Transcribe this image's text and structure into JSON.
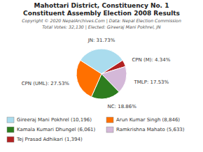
{
  "chart_data": {
    "type": "pie",
    "title": "Mahottari District, Constituency No. 1",
    "subtitle": "Constituent Assembly Election 2008 Results",
    "categories": [
      "JN",
      "CPN (M)",
      "TMLP",
      "NC",
      "CPN (UML)"
    ],
    "values": [
      31.73,
      4.34,
      17.53,
      18.86,
      27.53
    ],
    "value_labels": [
      "JN: 31.73%",
      "CPN (M): 4.34%",
      "TMLP: 17.53%",
      "NC: 18.86%",
      "CPN (UML): 27.53%"
    ],
    "colors": [
      "#aadcee",
      "#b22222",
      "#d4b8d8",
      "#2e7d1f",
      "#ff7000"
    ],
    "data_labels": true,
    "annotations": [
      {
        "text": "Copyright © 2020 NepalArchives.Com | Data: Nepal Election Commission"
      },
      {
        "text": "Total Votes: 32,130 | Elected: Gireeraj Mani Pokhrel, JN"
      },
      {
        "text": "Gireeraj Mani Pokhrel (10,196)",
        "color": "#aadcee"
      },
      {
        "text": "Arun Kumar Singh (8,846)",
        "color": "#ff7000"
      },
      {
        "text": "Kamala Kumari Dhungel (6,061)",
        "color": "#2e7d1f"
      },
      {
        "text": "Ramkrishna Mahato (5,633)",
        "color": "#d4b8d8"
      },
      {
        "text": "Tej Prasad Adhikari (1,394)",
        "color": "#b22222"
      }
    ]
  }
}
